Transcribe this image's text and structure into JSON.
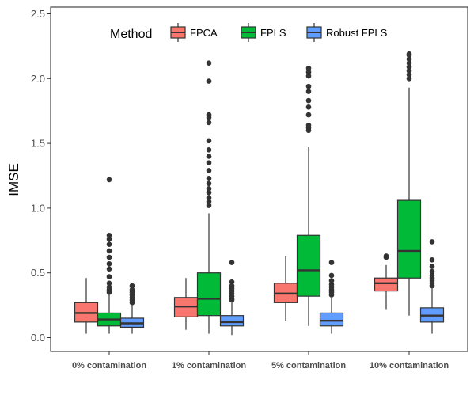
{
  "chart_data": {
    "type": "box",
    "xlabel": "",
    "ylabel": "IMSE",
    "ylim": [
      0,
      2.5
    ],
    "yticks": [
      0.0,
      0.5,
      1.0,
      1.5,
      2.0,
      2.5
    ],
    "ytick_labels": [
      "0.0",
      "0.5",
      "1.0",
      "1.5",
      "2.0",
      "2.5"
    ],
    "categories": [
      "0% contamination",
      "1% contamination",
      "5% contamination",
      "10% contamination"
    ],
    "grid": false,
    "legend": {
      "title": "Method",
      "placement": "top",
      "entries": [
        "FPCA",
        "FPLS",
        "Robust FPLS"
      ]
    },
    "series": [
      {
        "name": "FPCA",
        "color": "#F8766D",
        "boxes": [
          {
            "whisker_low": 0.03,
            "q1": 0.12,
            "median": 0.19,
            "q3": 0.27,
            "whisker_high": 0.46,
            "outliers": []
          },
          {
            "whisker_low": 0.06,
            "q1": 0.16,
            "median": 0.24,
            "q3": 0.31,
            "whisker_high": 0.46,
            "outliers": []
          },
          {
            "whisker_low": 0.13,
            "q1": 0.27,
            "median": 0.34,
            "q3": 0.42,
            "whisker_high": 0.63,
            "outliers": []
          },
          {
            "whisker_low": 0.22,
            "q1": 0.36,
            "median": 0.42,
            "q3": 0.46,
            "whisker_high": 0.56,
            "outliers": [
              0.62,
              0.63
            ]
          }
        ]
      },
      {
        "name": "FPLS",
        "color": "#00BA38",
        "boxes": [
          {
            "whisker_low": 0.03,
            "q1": 0.09,
            "median": 0.14,
            "q3": 0.19,
            "whisker_high": 0.33,
            "outliers": [
              0.35,
              0.37,
              0.39,
              0.42,
              0.47,
              0.53,
              0.57,
              0.62,
              0.67,
              0.72,
              0.76,
              0.79,
              1.22
            ]
          },
          {
            "whisker_low": 0.03,
            "q1": 0.17,
            "median": 0.3,
            "q3": 0.5,
            "whisker_high": 0.96,
            "outliers": [
              1.02,
              1.05,
              1.08,
              1.12,
              1.15,
              1.19,
              1.23,
              1.29,
              1.35,
              1.4,
              1.45,
              1.52,
              1.66,
              1.7,
              1.72,
              1.98,
              2.12
            ]
          },
          {
            "whisker_low": 0.09,
            "q1": 0.32,
            "median": 0.52,
            "q3": 0.79,
            "whisker_high": 1.47,
            "outliers": [
              1.6,
              1.62,
              1.64,
              1.72,
              1.78,
              1.83,
              1.9,
              1.94,
              2.02,
              2.05,
              2.08
            ]
          },
          {
            "whisker_low": 0.17,
            "q1": 0.46,
            "median": 0.67,
            "q3": 1.06,
            "whisker_high": 1.93,
            "outliers": [
              2.0,
              2.03,
              2.06,
              2.09,
              2.12,
              2.15,
              2.18,
              2.19
            ]
          }
        ]
      },
      {
        "name": "Robust FPLS",
        "color": "#619CFF",
        "boxes": [
          {
            "whisker_low": 0.03,
            "q1": 0.08,
            "median": 0.11,
            "q3": 0.15,
            "whisker_high": 0.25,
            "outliers": [
              0.27,
              0.29,
              0.31,
              0.33,
              0.35,
              0.37,
              0.4
            ]
          },
          {
            "whisker_low": 0.02,
            "q1": 0.09,
            "median": 0.12,
            "q3": 0.17,
            "whisker_high": 0.27,
            "outliers": [
              0.29,
              0.3,
              0.32,
              0.34,
              0.36,
              0.38,
              0.4,
              0.43,
              0.58
            ]
          },
          {
            "whisker_low": 0.03,
            "q1": 0.09,
            "median": 0.13,
            "q3": 0.19,
            "whisker_high": 0.31,
            "outliers": [
              0.33,
              0.35,
              0.37,
              0.39,
              0.41,
              0.44,
              0.48,
              0.58
            ]
          },
          {
            "whisker_low": 0.03,
            "q1": 0.12,
            "median": 0.17,
            "q3": 0.23,
            "whisker_high": 0.38,
            "outliers": [
              0.4,
              0.42,
              0.44,
              0.46,
              0.48,
              0.51,
              0.55,
              0.6,
              0.74
            ]
          }
        ]
      }
    ]
  }
}
